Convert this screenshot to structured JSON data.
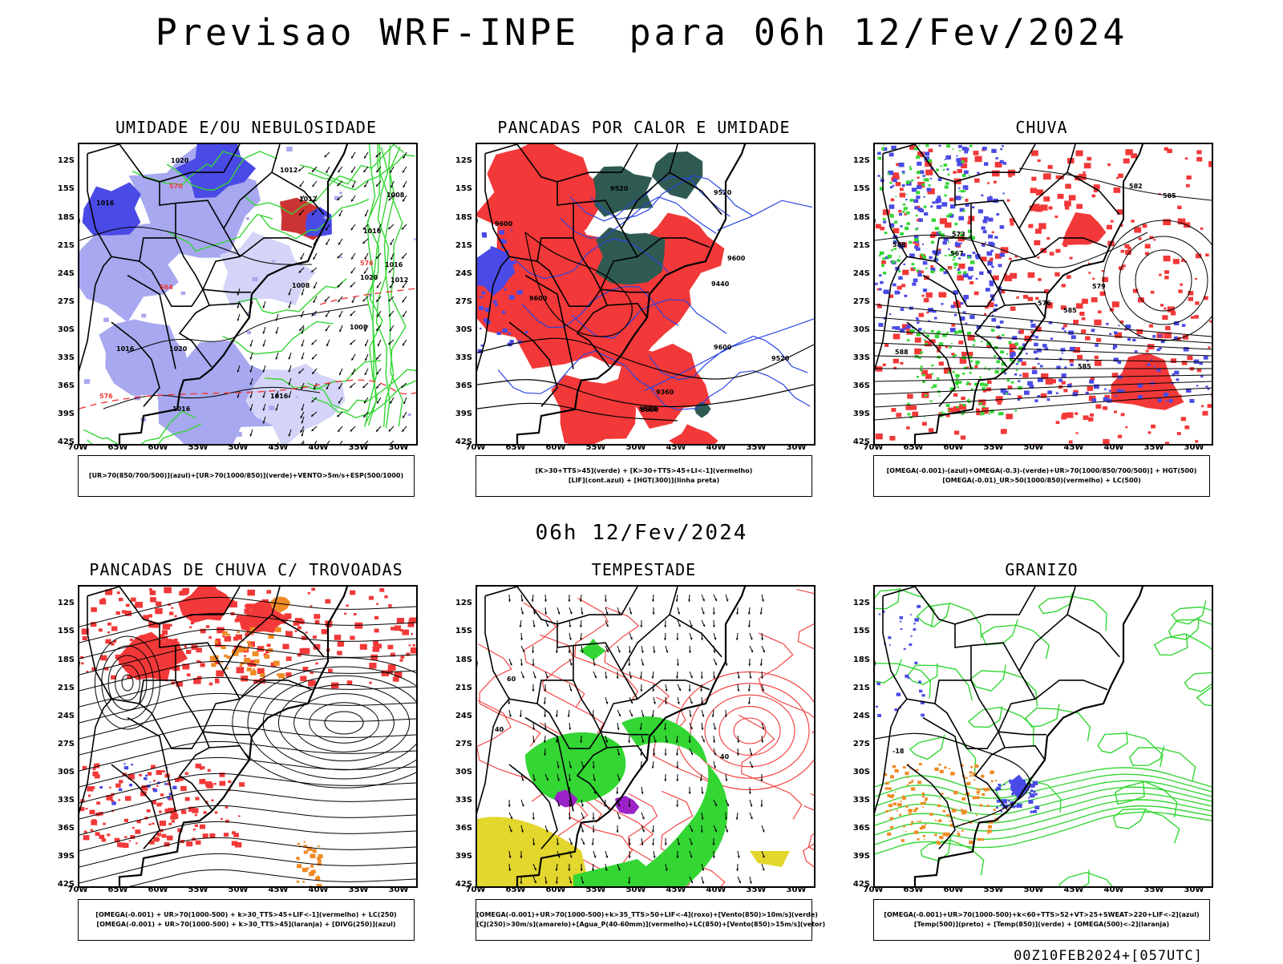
{
  "header": {
    "title": "Previsao WRF-INPE  para 06h 12/Fev/2024",
    "middle_title": "06h 12/Fev/2024",
    "footer": "00Z10FEB2024+[057UTC]"
  },
  "axes": {
    "lat_labels": [
      "12S",
      "15S",
      "18S",
      "21S",
      "24S",
      "27S",
      "30S",
      "33S",
      "36S",
      "39S",
      "42S"
    ],
    "lon_labels": [
      "70W",
      "65W",
      "60W",
      "55W",
      "50W",
      "45W",
      "40W",
      "35W",
      "30W"
    ]
  },
  "panels": [
    {
      "id": "umidade",
      "title": "UMIDADE E/OU NEBULOSIDADE",
      "legend": [
        "[UR>70(850/700/500)](azul)+[UR>70(1000/850)](verde)+VENTO>5m/s+ESP(500/1000)"
      ],
      "contour_labels": [
        "1016",
        "1016",
        "1008",
        "1008",
        "1012",
        "1016",
        "1016",
        "1020",
        "1016",
        "1008",
        "1012",
        "1020",
        "1012",
        "1016",
        "1020",
        "576",
        "576",
        "570",
        "564"
      ]
    },
    {
      "id": "pancadas-calor",
      "title": "PANCADAS POR CALOR E UMIDADE",
      "legend": [
        "[K>30+TTS>45](verde) + [K>30+TTS>45+LI<-1](vermelho)",
        "[LIF](cont.azul) + [HGT(300)](linha preta)"
      ],
      "contour_labels": [
        "9600",
        "9580",
        "9600",
        "9600",
        "9520",
        "9600",
        "9440",
        "9360",
        "9520",
        "9600",
        "9520"
      ]
    },
    {
      "id": "chuva",
      "title": "CHUVA",
      "legend": [
        "[OMEGA(-0.001)-(azul)+OMEGA(-0.3)-(verde)+UR>70(1000/850/700/500)] + HGT(500)",
        "[OMEGA(-0.01)_UR>50(1000/850)(vermelho) + LC(500)"
      ],
      "contour_labels": [
        "588",
        "585",
        "588",
        "585",
        "582",
        "579",
        "576",
        "573",
        "567",
        "585"
      ]
    },
    {
      "id": "trovoadas",
      "title": "PANCADAS DE CHUVA C/ TROVOADAS",
      "legend": [
        "[OMEGA(-0.001) + UR>70(1000-500) + k>30_TTS>45+LIF<-1](vermelho) + LC(250)",
        "[OMEGA(-0.001) + UR>70(1000-500) + k>30_TTS>45](laranja) + [DIVG(250)](azul)"
      ],
      "contour_labels": []
    },
    {
      "id": "tempestade",
      "title": "TEMPESTADE",
      "legend": [
        "[OMEGA(-0.001)+UR>70(1000-500)+k>35_TTS>50+LIF<-4](roxo)+[Vento(850)>10m/s](verde)",
        "[CJ(250)>30m/s](amarelo)+[Agua_P(40-60mm)](vermelho)+LC(850)+[Vento(850)>15m/s](vetor)"
      ],
      "contour_labels": [
        "40",
        "40",
        "60"
      ]
    },
    {
      "id": "granizo",
      "title": "GRANIZO",
      "legend": [
        "[OMEGA(-0.001)+UR>70(1000-500)+k<60+TTS>52+VT>25+SWEAT>220+LIF<-2](azul)",
        "[Temp(500)](preto) + [Temp(850)](verde) + [OMEGA(500)<-2](laranja)"
      ],
      "contour_labels": [
        "-18"
      ]
    }
  ],
  "colors": {
    "blue_dark": "#4a4ae6",
    "blue_light": "#a8a8f0",
    "blue_pale": "#d4d4f8",
    "green": "#33d633",
    "red": "#f23838",
    "dark_teal": "#2f5a52",
    "orange": "#f08a24",
    "yellow": "#e3d62c",
    "purple": "#9b22c8",
    "black": "#000000"
  }
}
